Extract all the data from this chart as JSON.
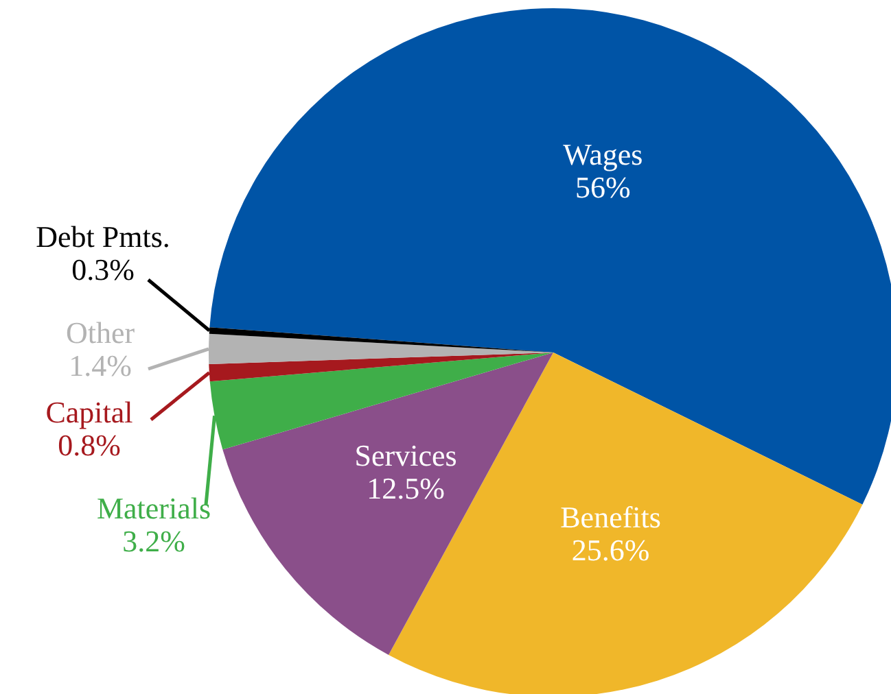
{
  "chart_data": {
    "type": "pie",
    "categories": [
      "Wages",
      "Benefits",
      "Services",
      "Materials",
      "Capital",
      "Other",
      "Debt Pmts."
    ],
    "values": [
      56,
      25.6,
      12.5,
      3.2,
      0.8,
      1.4,
      0.3
    ],
    "colors": [
      "#0054a6",
      "#f0b72a",
      "#8a4f8a",
      "#3fae49",
      "#a6191e",
      "#b3b3b3",
      "#000000"
    ],
    "value_labels": [
      "56%",
      "25.6%",
      "12.5%",
      "3.2%",
      "0.8%",
      "1.4%",
      "0.3%"
    ]
  }
}
